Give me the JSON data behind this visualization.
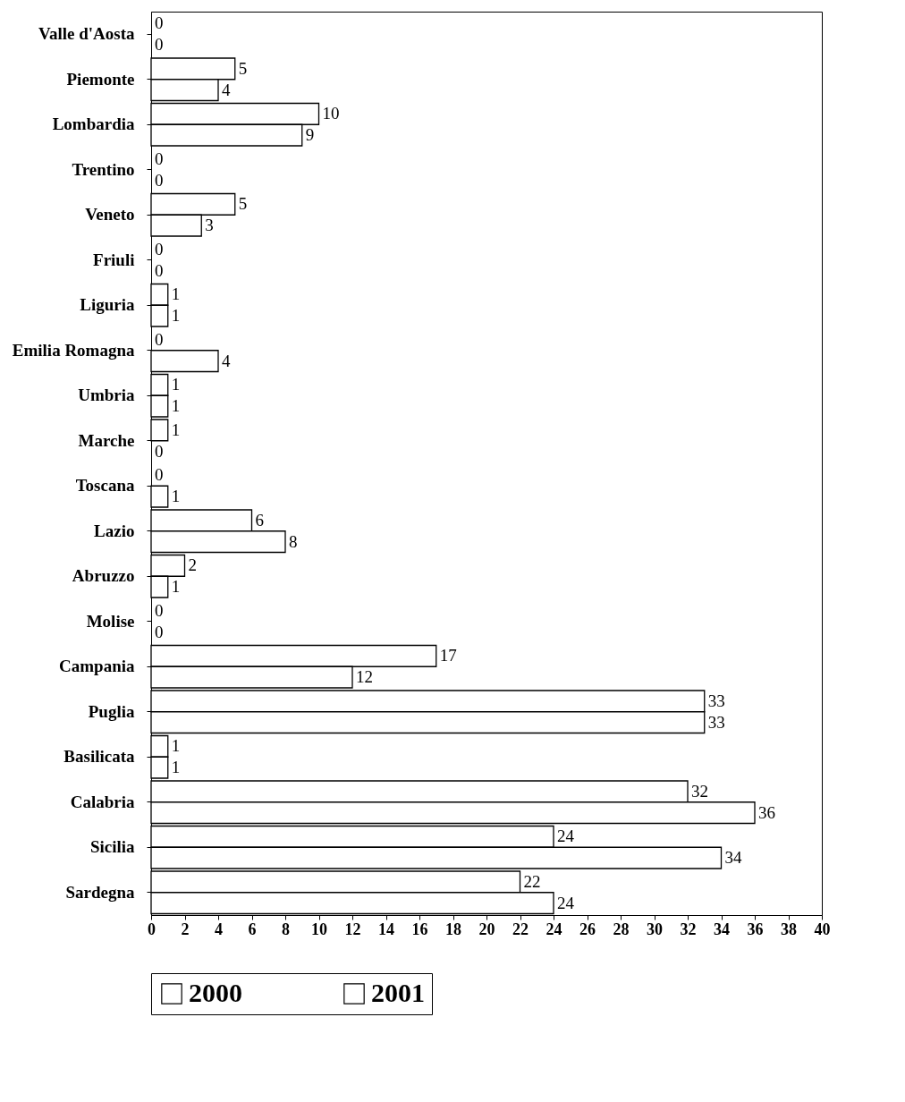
{
  "chart_data": {
    "type": "bar",
    "orientation": "horizontal",
    "categories": [
      "Valle d'Aosta",
      "Piemonte",
      "Lombardia",
      "Trentino",
      "Veneto",
      "Friuli",
      "Liguria",
      "Emilia Romagna",
      "Umbria",
      "Marche",
      "Toscana",
      "Lazio",
      "Abruzzo",
      "Molise",
      "Campania",
      "Puglia",
      "Basilicata",
      "Calabria",
      "Sicilia",
      "Sardegna"
    ],
    "series": [
      {
        "name": "2000",
        "color": "#ffffff",
        "values": [
          0,
          5,
          10,
          0,
          5,
          0,
          1,
          0,
          1,
          1,
          0,
          6,
          2,
          0,
          17,
          33,
          1,
          32,
          24,
          22
        ]
      },
      {
        "name": "2001",
        "color": "#ffffff",
        "values": [
          0,
          4,
          9,
          0,
          3,
          0,
          1,
          4,
          1,
          0,
          1,
          8,
          1,
          0,
          12,
          33,
          1,
          36,
          34,
          24
        ]
      }
    ],
    "xlim": [
      0,
      40
    ],
    "xticks": [
      0,
      2,
      4,
      6,
      8,
      10,
      12,
      14,
      16,
      18,
      20,
      22,
      24,
      26,
      28,
      30,
      32,
      34,
      36,
      38,
      40
    ],
    "data_labels": true,
    "grid": false,
    "legend": "bottom"
  }
}
